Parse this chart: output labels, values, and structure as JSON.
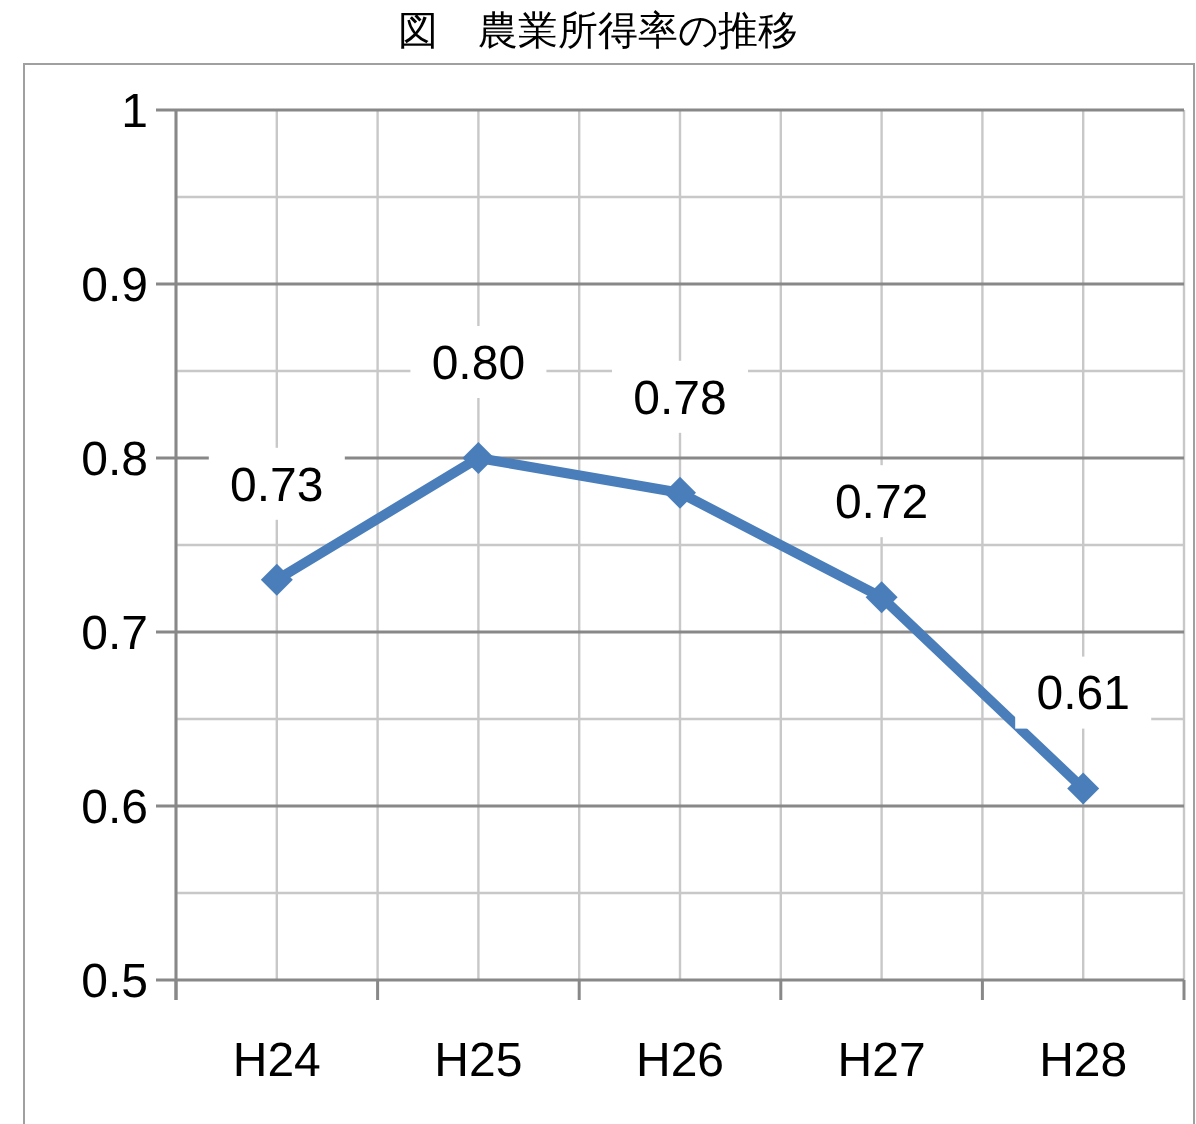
{
  "chart_data": {
    "type": "line",
    "title": "図　農業所得率の推移",
    "categories": [
      "H24",
      "H25",
      "H26",
      "H27",
      "H28"
    ],
    "series": [
      {
        "color": "#4a7ebb",
        "values": [
          0.73,
          0.8,
          0.78,
          0.72,
          0.61
        ]
      }
    ],
    "value_labels": [
      "0.73",
      "0.80",
      "0.78",
      "0.72",
      "0.61"
    ],
    "ylim": [
      0.5,
      1
    ],
    "yticks": [
      0.5,
      0.6,
      0.7,
      0.8,
      0.9,
      1
    ],
    "grid": true,
    "marker": "diamond"
  }
}
